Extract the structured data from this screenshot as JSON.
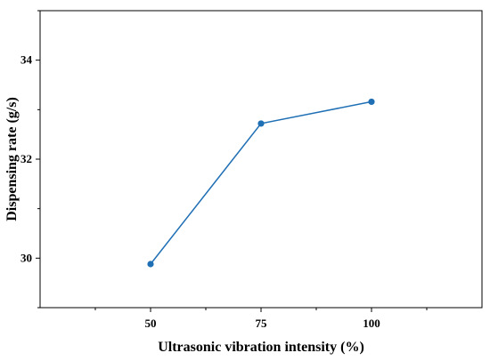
{
  "chart_data": {
    "type": "line",
    "title": "",
    "xlabel": "Ultrasonic vibration intensity (%)",
    "ylabel": "Dispensing rate (g/s)",
    "x": [
      50,
      75,
      100
    ],
    "series": [
      {
        "values": [
          29.88,
          32.72,
          33.16
        ],
        "color": "#1f6fb5"
      }
    ],
    "xlim": [
      25,
      125
    ],
    "ylim": [
      29,
      35
    ],
    "xticks": [
      "50",
      "75",
      "100"
    ],
    "yticks": [
      "30",
      "32",
      "34"
    ],
    "grid": false,
    "legend": "none"
  }
}
